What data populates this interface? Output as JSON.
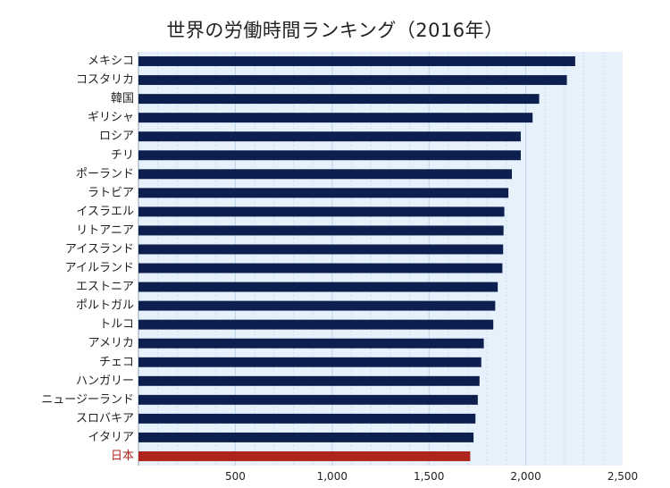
{
  "chart_data": {
    "type": "bar",
    "orientation": "horizontal",
    "title": "世界の労働時間ランキング（2016年）",
    "xlabel": "",
    "ylabel": "",
    "xlim": [
      0,
      2500
    ],
    "xticks": [
      500,
      1000,
      1500,
      2000,
      2500
    ],
    "xtick_labels": [
      "500",
      "1,000",
      "1,500",
      "2,000",
      "2,500"
    ],
    "grid": true,
    "categories": [
      "メキシコ",
      "コスタリカ",
      "韓国",
      "ギリシャ",
      "ロシア",
      "チリ",
      "ポーランド",
      "ラトビア",
      "イスラエル",
      "リトアニア",
      "アイスランド",
      "アイルランド",
      "エストニア",
      "ポルトガル",
      "トルコ",
      "アメリカ",
      "チェコ",
      "ハンガリー",
      "ニュージーランド",
      "スロバキア",
      "イタリア",
      "日本"
    ],
    "values": [
      2255,
      2212,
      2069,
      2035,
      1974,
      1974,
      1928,
      1910,
      1889,
      1885,
      1883,
      1879,
      1855,
      1842,
      1832,
      1783,
      1770,
      1761,
      1752,
      1740,
      1730,
      1713
    ],
    "highlight_category": "日本",
    "colors": {
      "bar": "#0d1f4f",
      "highlight_bar": "#b0241e",
      "highlight_label": "#b0241e",
      "plot_background": "#e6f1fb",
      "grid": "#bcd3e8",
      "text": "#222222"
    }
  }
}
